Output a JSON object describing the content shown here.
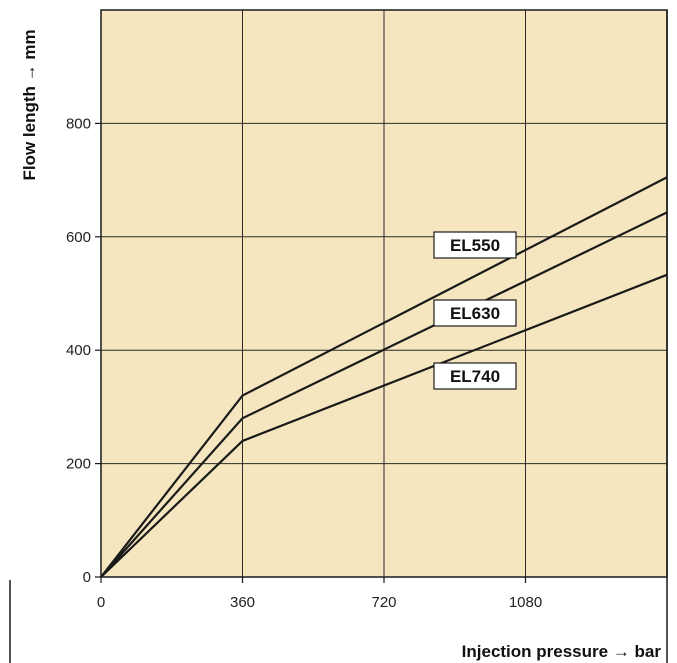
{
  "chart_data": {
    "type": "line",
    "xlabel": "Injection pressure → bar",
    "ylabel": "Flow length → mm",
    "xlim": [
      0,
      1440
    ],
    "ylim": [
      0,
      1000
    ],
    "x_ticks": [
      0,
      360,
      720,
      1080
    ],
    "y_ticks": [
      0,
      200,
      400,
      600,
      800
    ],
    "grid": true,
    "series": [
      {
        "name": "EL550",
        "x": [
          0,
          360,
          1440
        ],
        "y": [
          0,
          320,
          705
        ]
      },
      {
        "name": "EL630",
        "x": [
          0,
          360,
          1440
        ],
        "y": [
          0,
          280,
          643
        ]
      },
      {
        "name": "EL740",
        "x": [
          0,
          360,
          1440
        ],
        "y": [
          0,
          240,
          533
        ]
      }
    ]
  },
  "colors": {
    "plot_background": "#f5e6bf",
    "line": "#1a1a1a",
    "grid": "#2a2a2a"
  }
}
